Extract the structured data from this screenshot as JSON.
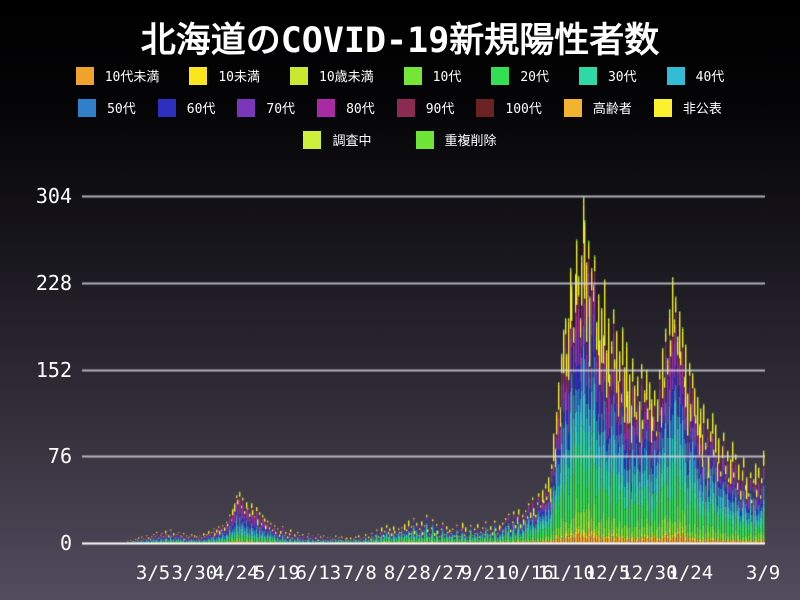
{
  "title": "北海道のCOVID-19新規陽性者数",
  "style": {
    "background_top": "#000000",
    "background_bottom": "#524C5D",
    "grid_color": "#D9D8E2",
    "axis_color": "#FFFFFF",
    "text_color": "#FFFFFF"
  },
  "chart_data": {
    "type": "bar",
    "stacked": true,
    "title": "北海道のCOVID-19新規陽性者数",
    "xlabel": "",
    "ylabel": "",
    "ylim": [
      0,
      310
    ],
    "y_ticks": [
      0,
      76,
      152,
      228,
      304
    ],
    "grid": true,
    "legend_position": "top",
    "x_tick_labels": [
      "3/5",
      "3/30",
      "4/24",
      "5/19",
      "6/13",
      "7/8",
      "8/2",
      "8/27",
      "9/21",
      "10/16",
      "11/10",
      "12/5",
      "12/30",
      "1/24",
      "3/9"
    ],
    "x_tick_days": [
      20,
      45,
      70,
      95,
      120,
      145,
      170,
      195,
      220,
      245,
      270,
      295,
      320,
      345,
      389
    ],
    "days_total": 390,
    "series_legend": [
      {
        "label": "10代未満",
        "color": "#F0A32B"
      },
      {
        "label": "10未満",
        "color": "#FCE51D"
      },
      {
        "label": "10歳未満",
        "color": "#C9E82F"
      },
      {
        "label": "10代",
        "color": "#76E636"
      },
      {
        "label": "20代",
        "color": "#33DF53"
      },
      {
        "label": "30代",
        "color": "#2FD9A5"
      },
      {
        "label": "40代",
        "color": "#33BCD6"
      },
      {
        "label": "50代",
        "color": "#2F7FC9"
      },
      {
        "label": "60代",
        "color": "#2D2FC0"
      },
      {
        "label": "70代",
        "color": "#7B35B8"
      },
      {
        "label": "80代",
        "color": "#A82BA4"
      },
      {
        "label": "90代",
        "color": "#8B2A52"
      },
      {
        "label": "100代",
        "color": "#6B2222"
      },
      {
        "label": "高齢者",
        "color": "#F2B32E"
      },
      {
        "label": "非公表",
        "color": "#FAF02B"
      },
      {
        "label": "調査中",
        "color": "#CDF03A"
      },
      {
        "label": "重複削除",
        "color": "#6FE636"
      }
    ],
    "legend_rows": [
      [
        0,
        1,
        2,
        3,
        4,
        5,
        6
      ],
      [
        7,
        8,
        9,
        10,
        11,
        12,
        13,
        14
      ],
      [
        15,
        16
      ]
    ],
    "era_weights": [
      {
        "until": 130,
        "w": [
          0.02,
          0.01,
          0.005,
          0.05,
          0.1,
          0.09,
          0.1,
          0.12,
          0.1,
          0.12,
          0.1,
          0.05,
          0.005,
          0.005,
          0.1,
          0.02,
          0.005
        ]
      },
      {
        "until": 230,
        "w": [
          0.03,
          0.01,
          0.01,
          0.08,
          0.18,
          0.13,
          0.11,
          0.1,
          0.07,
          0.06,
          0.05,
          0.02,
          0.002,
          0.003,
          0.12,
          0.02,
          0.005
        ]
      },
      {
        "until": 390,
        "w": [
          0.025,
          0.01,
          0.01,
          0.07,
          0.16,
          0.12,
          0.11,
          0.1,
          0.08,
          0.07,
          0.06,
          0.035,
          0.003,
          0.003,
          0.13,
          0.015,
          0.004
        ]
      }
    ],
    "daily_totals": [
      0,
      0,
      1,
      0,
      2,
      1,
      3,
      2,
      2,
      4,
      3,
      5,
      2,
      6,
      4,
      3,
      7,
      5,
      4,
      6,
      8,
      6,
      10,
      5,
      7,
      9,
      6,
      11,
      8,
      7,
      12,
      6,
      9,
      5,
      8,
      10,
      7,
      6,
      9,
      4,
      7,
      5,
      6,
      8,
      5,
      7,
      6,
      4,
      7,
      5,
      9,
      6,
      8,
      11,
      7,
      10,
      13,
      9,
      12,
      15,
      11,
      12,
      16,
      14,
      19,
      17,
      25,
      21,
      30,
      35,
      42,
      38,
      45,
      33,
      40,
      28,
      36,
      31,
      26,
      35,
      29,
      24,
      32,
      21,
      27,
      18,
      25,
      22,
      16,
      20,
      14,
      18,
      12,
      16,
      10,
      13,
      8,
      11,
      15,
      7,
      10,
      6,
      9,
      12,
      5,
      8,
      6,
      10,
      7,
      4,
      8,
      5,
      3,
      6,
      9,
      4,
      7,
      2,
      5,
      8,
      3,
      6,
      4,
      7,
      3,
      5,
      2,
      6,
      4,
      3,
      7,
      2,
      5,
      3,
      6,
      2,
      4,
      5,
      3,
      5,
      2,
      4,
      6,
      3,
      7,
      4,
      2,
      5,
      8,
      3,
      6,
      4,
      9,
      5,
      7,
      12,
      6,
      9,
      14,
      8,
      11,
      16,
      10,
      13,
      9,
      15,
      11,
      8,
      13,
      10,
      14,
      8,
      17,
      12,
      20,
      9,
      15,
      22,
      11,
      18,
      7,
      13,
      19,
      10,
      16,
      25,
      12,
      8,
      14,
      21,
      9,
      17,
      11,
      6,
      13,
      18,
      8,
      15,
      10,
      12,
      9,
      13,
      7,
      16,
      10,
      6,
      12,
      18,
      8,
      14,
      5,
      11,
      16,
      7,
      13,
      9,
      17,
      6,
      10,
      14,
      8,
      19,
      12,
      7,
      15,
      10,
      20,
      13,
      9,
      16,
      14,
      18,
      11,
      22,
      15,
      26,
      12,
      19,
      28,
      16,
      23,
      30,
      17,
      25,
      21,
      29,
      24,
      35,
      27,
      40,
      31,
      25,
      36,
      44,
      33,
      47,
      38,
      52,
      41,
      58,
      48,
      69,
      96,
      83,
      115,
      141,
      119,
      166,
      187,
      197,
      166,
      197,
      241,
      226,
      189,
      236,
      266,
      234,
      197,
      252,
      304,
      283,
      246,
      265,
      216,
      241,
      226,
      252,
      194,
      218,
      178,
      206,
      182,
      231,
      169,
      197,
      148,
      177,
      205,
      161,
      186,
      142,
      168,
      131,
      189,
      154,
      176,
      133,
      148,
      121,
      162,
      138,
      115,
      146,
      124,
      157,
      108,
      134,
      152,
      118,
      141,
      126,
      111,
      134,
      98,
      126,
      152,
      119,
      171,
      145,
      188,
      162,
      205,
      178,
      233,
      196,
      216,
      181,
      203,
      168,
      189,
      146,
      174,
      131,
      158,
      122,
      149,
      136,
      112,
      128,
      104,
      118,
      95,
      122,
      88,
      109,
      76,
      98,
      114,
      82,
      104,
      71,
      92,
      63,
      85,
      97,
      68,
      81,
      57,
      74,
      89,
      62,
      78,
      53,
      69,
      46,
      64,
      75,
      51,
      58,
      44,
      62,
      38,
      56,
      70,
      47,
      66,
      42,
      57,
      81
    ]
  }
}
